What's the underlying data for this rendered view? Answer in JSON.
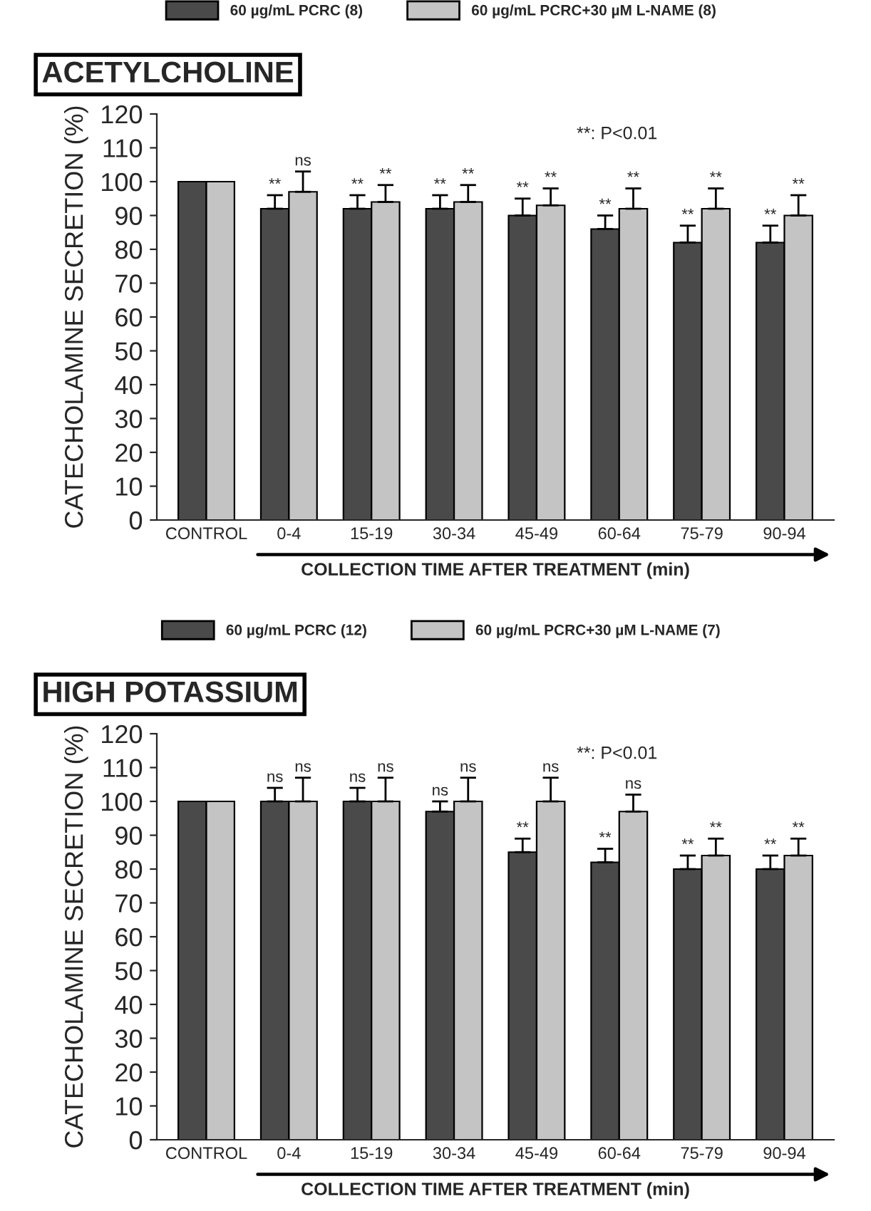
{
  "chart_data": [
    {
      "type": "bar",
      "title": "ACETYLCHOLINE",
      "ylabel": "CATECHOLAMINE SECRETION (%)",
      "xlabel": "COLLECTION TIME AFTER TREATMENT (min)",
      "categories": [
        "CONTROL",
        "0-4",
        "15-19",
        "30-34",
        "45-49",
        "60-64",
        "75-79",
        "90-94"
      ],
      "series": [
        {
          "name": "60 µg/mL PCRC (8)",
          "color": "#4a4a4a",
          "values": [
            100,
            92,
            92,
            92,
            90,
            86,
            82,
            82
          ],
          "errors": [
            null,
            [
              92,
              96
            ],
            [
              92,
              96
            ],
            [
              92,
              96
            ],
            [
              90,
              95
            ],
            [
              86,
              90
            ],
            [
              82,
              87
            ],
            [
              82,
              87
            ]
          ],
          "value_labels": [
            null,
            "**",
            "**",
            "**",
            "**",
            "**",
            "**",
            "**"
          ]
        },
        {
          "name": "60 µg/mL PCRC+30 µM L-NAME (8)",
          "color": "#c4c4c4",
          "values": [
            100,
            97,
            94,
            94,
            93,
            92,
            92,
            90
          ],
          "errors": [
            null,
            [
              97,
              103
            ],
            [
              94,
              99
            ],
            [
              94,
              99
            ],
            [
              93,
              98
            ],
            [
              92,
              98
            ],
            [
              92,
              98
            ],
            [
              90,
              96
            ]
          ],
          "value_labels": [
            null,
            "ns",
            "**",
            "**",
            "**",
            "**",
            "**",
            "**"
          ]
        }
      ],
      "ylim": [
        0,
        120
      ],
      "yticks": [
        0,
        10,
        20,
        30,
        40,
        50,
        60,
        70,
        80,
        90,
        100,
        110,
        120
      ],
      "legend": "top",
      "grid": false,
      "annotations": [
        "**: P<0.01"
      ]
    },
    {
      "type": "bar",
      "title": "HIGH POTASSIUM",
      "ylabel": "CATECHOLAMINE SECRETION (%)",
      "xlabel": "COLLECTION TIME AFTER TREATMENT (min)",
      "categories": [
        "CONTROL",
        "0-4",
        "15-19",
        "30-34",
        "45-49",
        "60-64",
        "75-79",
        "90-94"
      ],
      "series": [
        {
          "name": "60 µg/mL PCRC (12)",
          "color": "#4a4a4a",
          "values": [
            100,
            100,
            100,
            97,
            85,
            82,
            80,
            80
          ],
          "errors": [
            null,
            [
              100,
              104
            ],
            [
              100,
              104
            ],
            [
              97,
              100
            ],
            [
              85,
              89
            ],
            [
              82,
              86
            ],
            [
              80,
              84
            ],
            [
              80,
              84
            ]
          ],
          "value_labels": [
            null,
            "ns",
            "ns",
            "ns",
            "**",
            "**",
            "**",
            "**"
          ]
        },
        {
          "name": "60 µg/mL PCRC+30 µM L-NAME (7)",
          "color": "#c4c4c4",
          "values": [
            100,
            100,
            100,
            100,
            100,
            97,
            84,
            84
          ],
          "errors": [
            null,
            [
              100,
              107
            ],
            [
              100,
              107
            ],
            [
              100,
              107
            ],
            [
              100,
              107
            ],
            [
              97,
              102
            ],
            [
              84,
              89
            ],
            [
              84,
              89
            ]
          ],
          "value_labels": [
            null,
            "ns",
            "ns",
            "ns",
            "ns",
            "ns",
            "**",
            "**"
          ]
        }
      ],
      "ylim": [
        0,
        120
      ],
      "yticks": [
        0,
        10,
        20,
        30,
        40,
        50,
        60,
        70,
        80,
        90,
        100,
        110,
        120
      ],
      "legend": "top",
      "grid": false,
      "annotations": [
        "**: P<0.01"
      ]
    }
  ]
}
